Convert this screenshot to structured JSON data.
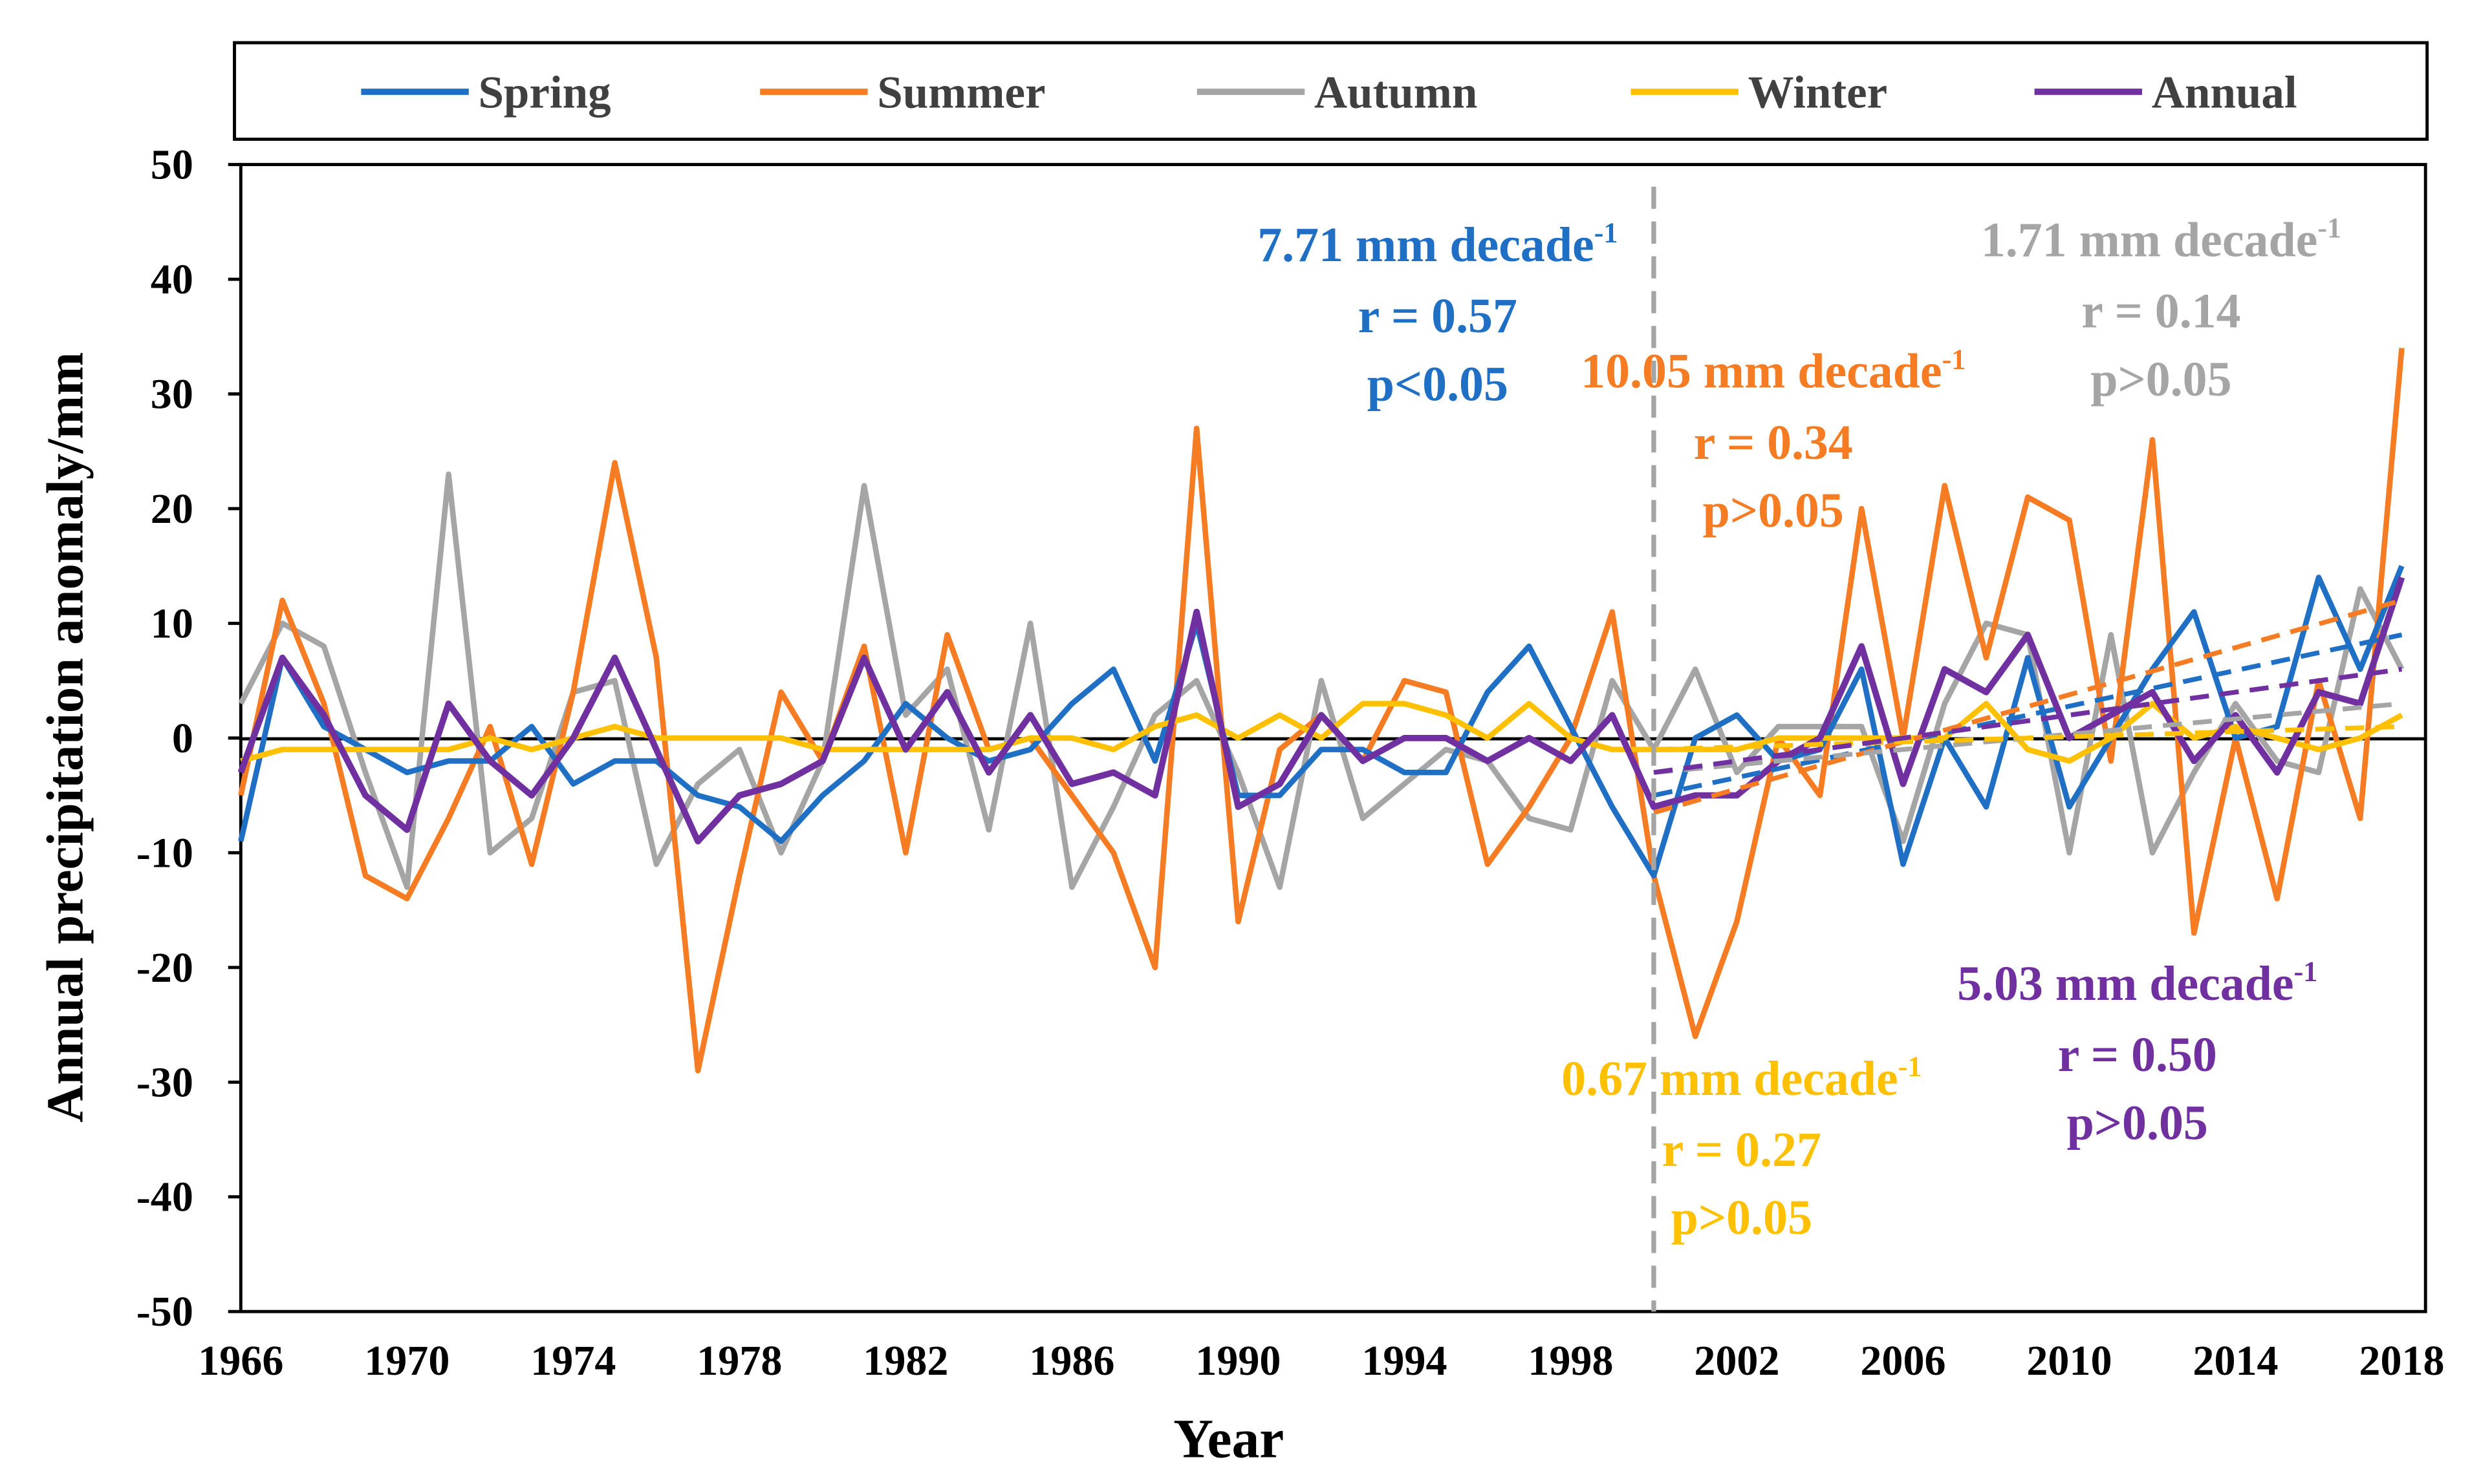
{
  "chart_data": {
    "type": "line",
    "title": "",
    "xlabel": "Year",
    "ylabel": "Annual precipitation anomaly/mm",
    "ylim": [
      -50,
      50
    ],
    "xlim": [
      1966,
      2018
    ],
    "y_ticks": [
      "50",
      "40",
      "30",
      "20",
      "10",
      "0",
      "-10",
      "-20",
      "-30",
      "-40",
      "-50"
    ],
    "x_ticks": [
      "1966",
      "1970",
      "1974",
      "1978",
      "1982",
      "1986",
      "1990",
      "1994",
      "1998",
      "2002",
      "2006",
      "2010",
      "2014",
      "2018"
    ],
    "legend_position": "top",
    "breakpoint_year": 2000,
    "x": [
      1966,
      1967,
      1968,
      1969,
      1970,
      1971,
      1972,
      1973,
      1974,
      1975,
      1976,
      1977,
      1978,
      1979,
      1980,
      1981,
      1982,
      1983,
      1984,
      1985,
      1986,
      1987,
      1988,
      1989,
      1990,
      1991,
      1992,
      1993,
      1994,
      1995,
      1996,
      1997,
      1998,
      1999,
      2000,
      2001,
      2002,
      2003,
      2004,
      2005,
      2006,
      2007,
      2008,
      2009,
      2010,
      2011,
      2012,
      2013,
      2014,
      2015,
      2016,
      2017,
      2018
    ],
    "series": [
      {
        "name": "Spring",
        "color": "#1f6fc5",
        "values": [
          -9,
          7,
          1,
          -1,
          -3,
          -2,
          -2,
          1,
          -4,
          -2,
          -2,
          -5,
          -6,
          -9,
          -5,
          -2,
          3,
          0,
          -2,
          -1,
          3,
          6,
          -2,
          10,
          -5,
          -5,
          -1,
          -1,
          -3,
          -3,
          4,
          8,
          1,
          -6,
          -12,
          0,
          2,
          -2,
          -1,
          6,
          -11,
          0,
          -6,
          7,
          -6,
          0,
          6,
          11,
          0,
          1,
          14,
          6,
          15
        ],
        "trend": [
          -5,
          9
        ],
        "annotation": {
          "rate": "7.71 mm decade",
          "sup": "-1",
          "r": "r = 0.57",
          "p": "p<0.05"
        }
      },
      {
        "name": "Summer",
        "color": "#f57c22",
        "values": [
          -5,
          12,
          3,
          -12,
          -14,
          -7,
          1,
          -11,
          4,
          24,
          7,
          -29,
          -12,
          4,
          -2,
          8,
          -10,
          9,
          -1,
          0,
          -5,
          -10,
          -20,
          27,
          -16,
          -1,
          2,
          -2,
          5,
          4,
          -11,
          -6,
          0,
          11,
          -12,
          -26,
          -16,
          0,
          -5,
          20,
          0,
          22,
          7,
          21,
          19,
          -2,
          26,
          -17,
          0,
          -14,
          5,
          -7,
          34
        ],
        "trend": [
          -6.5,
          12
        ],
        "annotation": {
          "rate": "10.05 mm decade",
          "sup": "-1",
          "r": "r = 0.34",
          "p": "p>0.05"
        }
      },
      {
        "name": "Autumn",
        "color": "#a5a5a5",
        "values": [
          3,
          10,
          8,
          -3,
          -13,
          23,
          -10,
          -7,
          4,
          5,
          -11,
          -4,
          -1,
          -10,
          -2,
          22,
          2,
          6,
          -8,
          10,
          -13,
          -6,
          2,
          5,
          -3,
          -13,
          5,
          -7,
          -4,
          -1,
          -2,
          -7,
          -8,
          5,
          -1,
          6,
          -3,
          1,
          1,
          1,
          -9,
          3,
          10,
          9,
          -10,
          9,
          -10,
          -3,
          3,
          -2,
          -3,
          13,
          6
        ],
        "trend": [
          -3,
          3
        ],
        "annotation": {
          "rate": "1.71 mm decade",
          "sup": "-1",
          "r": "r = 0.14",
          "p": "p>0.05"
        }
      },
      {
        "name": "Winter",
        "color": "#ffc000",
        "values": [
          -2,
          -1,
          -1,
          -1,
          -1,
          -1,
          0,
          -1,
          0,
          1,
          0,
          0,
          0,
          0,
          -1,
          -1,
          -1,
          -1,
          -1,
          0,
          0,
          -1,
          1,
          2,
          0,
          2,
          0,
          3,
          3,
          2,
          0,
          3,
          0,
          -1,
          -1,
          -1,
          -1,
          0,
          0,
          0,
          0,
          0,
          3,
          -1,
          -2,
          0,
          3,
          0,
          1,
          0,
          -1,
          0,
          2
        ],
        "trend": [
          -1,
          1
        ],
        "annotation": {
          "rate": "0.67 mm decade",
          "sup": "-1",
          "r": "r = 0.27",
          "p": "p>0.05"
        }
      },
      {
        "name": "Annual",
        "color": "#7030a0",
        "values": [
          -3,
          7,
          2,
          -5,
          -8,
          3,
          -2,
          -5,
          0,
          7,
          -1,
          -9,
          -5,
          -4,
          -2,
          7,
          -1,
          4,
          -3,
          2,
          -4,
          -3,
          -5,
          11,
          -6,
          -4,
          2,
          -2,
          0,
          0,
          -2,
          0,
          -2,
          2,
          -6,
          -5,
          -5,
          -2,
          0,
          8,
          -4,
          6,
          4,
          9,
          0,
          2,
          4,
          -2,
          2,
          -3,
          4,
          3,
          14
        ],
        "trend": [
          -3,
          6
        ],
        "annotation": {
          "rate": "5.03 mm decade",
          "sup": "-1",
          "r": "r = 0.50",
          "p": "p>0.05"
        }
      }
    ]
  }
}
